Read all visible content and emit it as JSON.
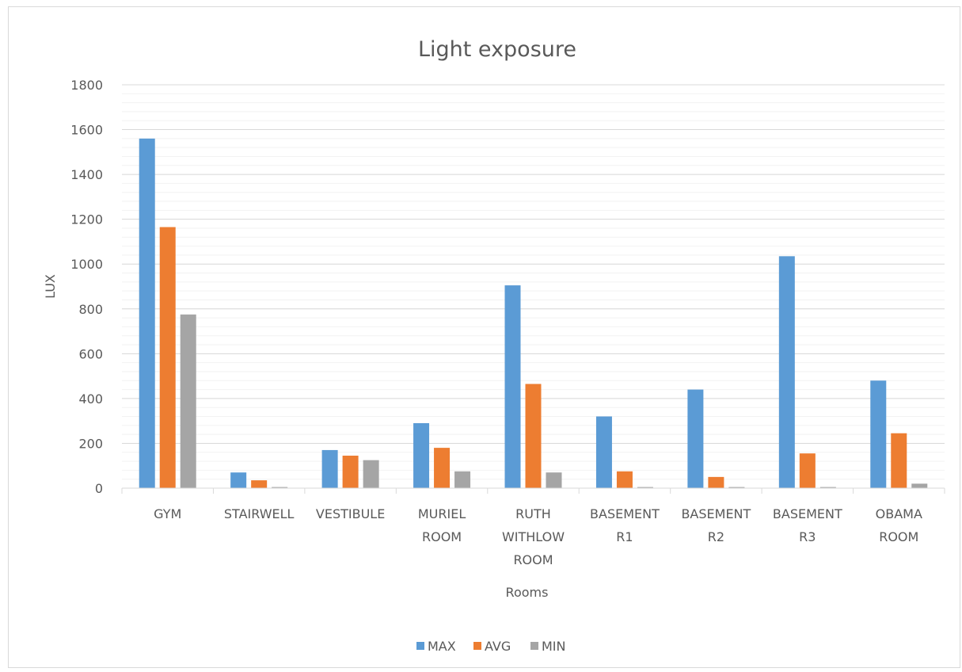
{
  "chart_data": {
    "type": "bar",
    "title": "Light exposure",
    "xlabel": "Rooms",
    "ylabel": "LUX",
    "categories": [
      [
        "GYM"
      ],
      [
        "STAIRWELL"
      ],
      [
        "VESTIBULE"
      ],
      [
        "MURIEL",
        "ROOM"
      ],
      [
        "RUTH",
        "WITHLOW",
        "ROOM"
      ],
      [
        "BASEMENT",
        "R1"
      ],
      [
        "BASEMENT",
        "R2"
      ],
      [
        "BASEMENT",
        "R3"
      ],
      [
        "OBAMA",
        "ROOM"
      ]
    ],
    "series": [
      {
        "name": "MAX",
        "color": "#5B9BD5",
        "values": [
          1560,
          70,
          170,
          290,
          905,
          320,
          440,
          1035,
          480
        ]
      },
      {
        "name": "AVG",
        "color": "#ED7D31",
        "values": [
          1165,
          35,
          145,
          180,
          465,
          75,
          50,
          155,
          245
        ]
      },
      {
        "name": "MIN",
        "color": "#A5A5A5",
        "values": [
          775,
          5,
          125,
          75,
          70,
          5,
          5,
          5,
          20
        ]
      }
    ],
    "ylim": [
      0,
      1800
    ],
    "yticks": [
      0,
      200,
      400,
      600,
      800,
      1000,
      1200,
      1400,
      1600,
      1800
    ],
    "major_grid": true,
    "minor_grid": true,
    "legend_position": "bottom"
  }
}
